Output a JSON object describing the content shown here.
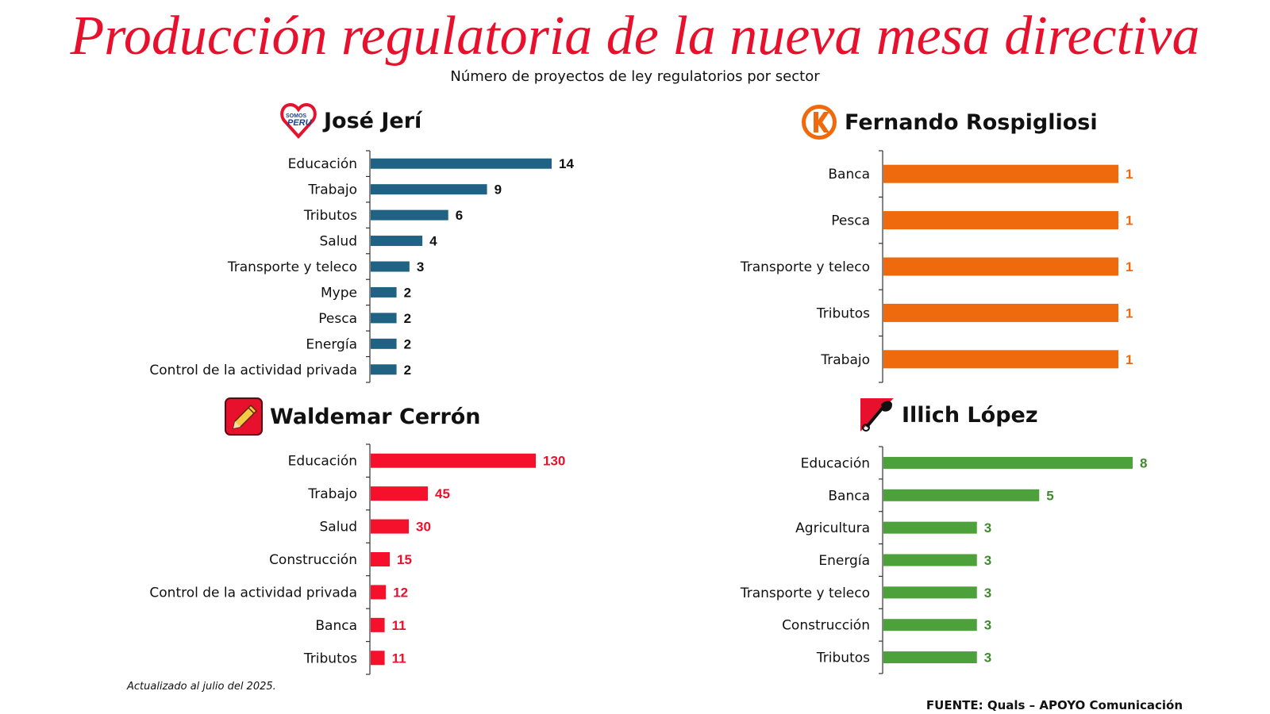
{
  "title": "Producción regulatoria de la nueva mesa directiva",
  "subtitle": "Número de proyectos de ley regulatorios por sector",
  "note": "Actualizado al julio del 2025.",
  "source": "FUENTE: Quals – APOYO Comunicación",
  "logos": {
    "somos_peru_text_top": "SOMOS",
    "somos_peru_text_bottom": "PERU"
  },
  "chart_data": [
    {
      "type": "bar",
      "orientation": "horizontal",
      "title": "José Jerí",
      "logo": "somos-peru-heart-icon",
      "color": "#1f6284",
      "label_color": "#111111",
      "categories": [
        "Educación",
        "Trabajo",
        "Tributos",
        "Salud",
        "Transporte y teleco",
        "Mype",
        "Pesca",
        "Energía",
        "Control de la actividad privada"
      ],
      "values": [
        14,
        9,
        6,
        4,
        3,
        2,
        2,
        2,
        2
      ],
      "xlim": [
        0,
        14
      ]
    },
    {
      "type": "bar",
      "orientation": "horizontal",
      "title": "Fernando Rospigliosi",
      "logo": "fuerza-popular-k-icon",
      "color": "#ee6a0c",
      "label_color": "#ee6a0c",
      "categories": [
        "Banca",
        "Pesca",
        "Transporte y teleco",
        "Tributos",
        "Trabajo"
      ],
      "values": [
        1,
        1,
        1,
        1,
        1
      ],
      "xlim": [
        0,
        1
      ]
    },
    {
      "type": "bar",
      "orientation": "horizontal",
      "title": "Waldemar Cerrón",
      "logo": "peru-libre-pencil-icon",
      "color": "#f5102b",
      "label_color": "#e8112d",
      "categories": [
        "Educación",
        "Trabajo",
        "Salud",
        "Construcción",
        "Control de la actividad privada",
        "Banca",
        "Tributos"
      ],
      "values": [
        130,
        45,
        30,
        15,
        12,
        11,
        11
      ],
      "xlim": [
        0,
        130
      ]
    },
    {
      "type": "bar",
      "orientation": "horizontal",
      "title": "Illich López",
      "logo": "accion-popular-shovel-icon",
      "color": "#4da13a",
      "label_color": "#3f8a2e",
      "categories": [
        "Educación",
        "Banca",
        "Agricultura",
        "Energía",
        "Transporte y teleco",
        "Construcción",
        "Tributos"
      ],
      "values": [
        8,
        5,
        3,
        3,
        3,
        3,
        3
      ],
      "xlim": [
        0,
        8
      ]
    }
  ]
}
